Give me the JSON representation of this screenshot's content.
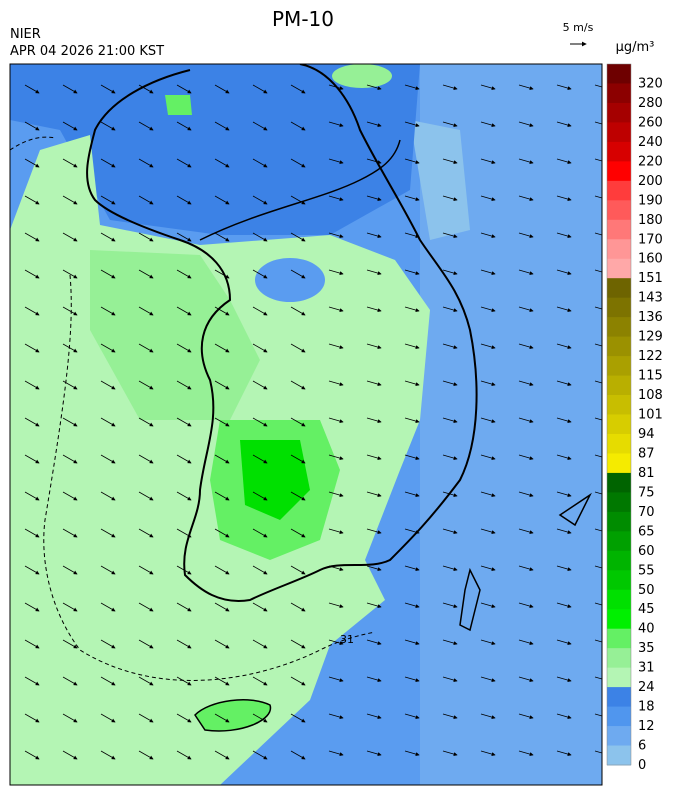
{
  "header": {
    "title": "PM-10",
    "issuer": "NIER",
    "timestamp": "APR 04 2026 21:00 KST"
  },
  "wind_scale": {
    "label": "5 m/s"
  },
  "legend": {
    "unit": "μg/m³",
    "levels": [
      320,
      280,
      260,
      240,
      220,
      200,
      190,
      180,
      170,
      160,
      151,
      143,
      136,
      129,
      122,
      115,
      108,
      101,
      94,
      87,
      81,
      75,
      70,
      65,
      60,
      55,
      50,
      45,
      40,
      35,
      31,
      24,
      18,
      12,
      6,
      0
    ],
    "colors": [
      "#6e0000",
      "#8c0000",
      "#a50000",
      "#be0000",
      "#d70000",
      "#ff0000",
      "#ff3c3c",
      "#ff5a5a",
      "#ff7878",
      "#ff9696",
      "#ffa8a8",
      "#6e6400",
      "#7d7300",
      "#8c8200",
      "#9b9100",
      "#aaa000",
      "#b9af00",
      "#c8be00",
      "#d7cd00",
      "#e6dc00",
      "#f5eb00",
      "#006400",
      "#007800",
      "#008c00",
      "#00a000",
      "#00b400",
      "#00c800",
      "#00e000",
      "#00f000",
      "#64f064",
      "#96f096",
      "#b4f5b4",
      "#3c82e6",
      "#5096ee",
      "#6eaaf0",
      "#8cc3ec"
    ]
  },
  "contour_label": "31"
}
